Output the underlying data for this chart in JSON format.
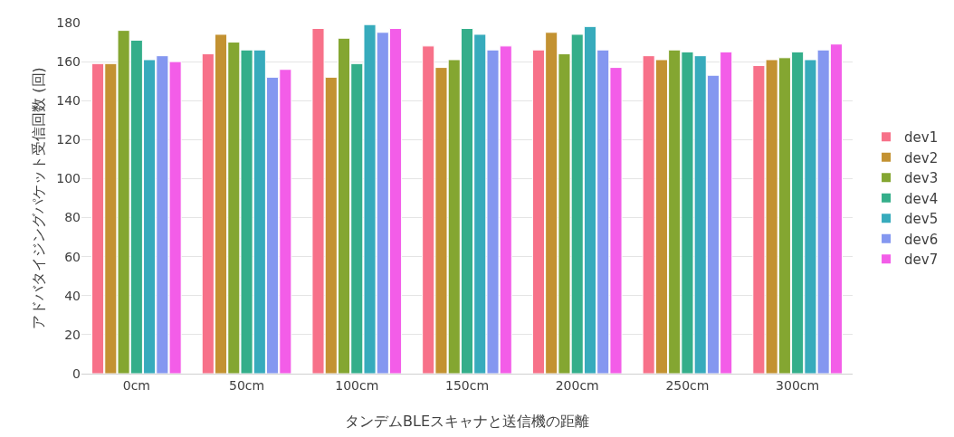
{
  "chart_data": {
    "type": "bar",
    "xlabel": "タンデムBLEスキャナと送信機の距離",
    "ylabel": "アドバタイジングパケット受信回数 (回)",
    "categories": [
      "0cm",
      "50cm",
      "100cm",
      "150cm",
      "200cm",
      "250cm",
      "300cm"
    ],
    "series": [
      {
        "name": "dev1",
        "color": "#f77189",
        "values": [
          159,
          164,
          177,
          168,
          166,
          163,
          158
        ]
      },
      {
        "name": "dev2",
        "color": "#c39232",
        "values": [
          159,
          174,
          152,
          157,
          175,
          161,
          161
        ]
      },
      {
        "name": "dev3",
        "color": "#84a631",
        "values": [
          176,
          170,
          172,
          161,
          164,
          166,
          162
        ]
      },
      {
        "name": "dev4",
        "color": "#34ae8a",
        "values": [
          171,
          166,
          159,
          177,
          174,
          165,
          165
        ]
      },
      {
        "name": "dev5",
        "color": "#37abbc",
        "values": [
          161,
          166,
          179,
          174,
          178,
          163,
          161
        ]
      },
      {
        "name": "dev6",
        "color": "#8497f0",
        "values": [
          163,
          152,
          175,
          166,
          166,
          153,
          166
        ]
      },
      {
        "name": "dev7",
        "color": "#f35de8",
        "values": [
          160,
          156,
          177,
          168,
          157,
          165,
          169
        ]
      }
    ],
    "ylim": [
      0,
      180
    ],
    "yticks": [
      0,
      20,
      40,
      60,
      80,
      100,
      120,
      140,
      160,
      180
    ],
    "grid": "y",
    "legend": "right"
  }
}
